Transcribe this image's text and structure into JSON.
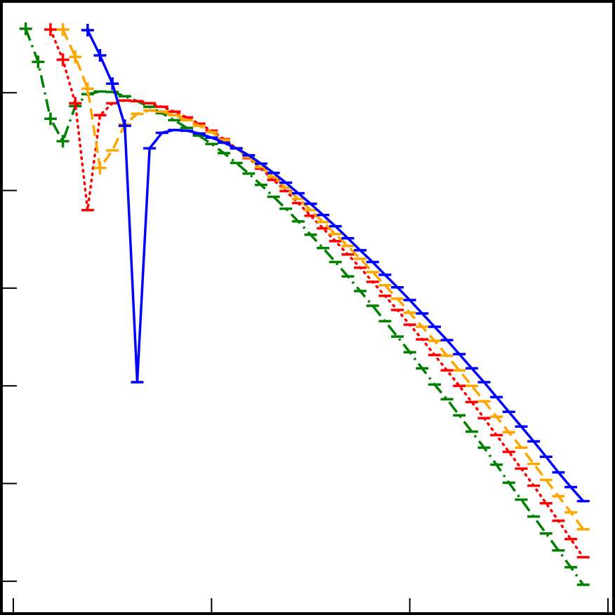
{
  "chart_data": {
    "type": "line",
    "log_x": true,
    "log_y": true,
    "sign_markers": true,
    "xlim": [
      0.0885,
      105
    ],
    "ylim": [
      4.82e-06,
      8.33
    ],
    "xticks": [
      0.1,
      1,
      10,
      100
    ],
    "yticks": [
      1e-05,
      0.0001,
      0.001,
      0.01,
      0.1,
      1
    ],
    "x": [
      0.1155,
      0.1334,
      0.154,
      0.1778,
      0.2054,
      0.2371,
      0.2738,
      0.3162,
      0.3652,
      0.4217,
      0.487,
      0.5623,
      0.6494,
      0.7499,
      0.866,
      1,
      1.155,
      1.334,
      1.54,
      1.778,
      2.054,
      2.371,
      2.738,
      3.162,
      3.652,
      4.217,
      4.87,
      5.623,
      6.494,
      7.499,
      8.66,
      10,
      11.55,
      13.34,
      15.4,
      17.78,
      20.54,
      23.71,
      27.38,
      31.62,
      36.52,
      42.17,
      48.7,
      56.23,
      64.94,
      74.99
    ],
    "series": [
      {
        "color": "#0000ff",
        "line_style": "solid",
        "values": [
          null,
          null,
          null,
          null,
          null,
          4.37,
          2.41,
          1.24,
          0.459,
          -0.00109,
          -0.27,
          -0.389,
          -0.416,
          -0.409,
          -0.383,
          -0.347,
          -0.308,
          -0.27,
          -0.229,
          -0.188,
          -0.151,
          -0.12,
          -0.0936,
          -0.073,
          -0.056,
          -0.043,
          -0.0324,
          -0.0244,
          -0.0185,
          -0.0137,
          -0.0102,
          -0.00755,
          -0.00551,
          -0.00402,
          -0.00294,
          -0.00211,
          -0.00151,
          -0.00109,
          -0.000767,
          -0.000542,
          -0.000383,
          -0.00027,
          -0.000188,
          -0.00013,
          -9.2e-05,
          -6.61e-05
        ]
      },
      {
        "color": "#ffa500",
        "line_style": "dashed",
        "values": [
          null,
          null,
          null,
          4.44,
          2.33,
          1.1,
          0.17,
          -0.257,
          -0.474,
          -0.608,
          -0.661,
          -0.64,
          -0.589,
          -0.524,
          -0.459,
          -0.395,
          -0.33,
          -0.27,
          -0.218,
          -0.173,
          -0.137,
          -0.107,
          -0.082,
          -0.0629,
          -0.0475,
          -0.0358,
          -0.027,
          -0.02,
          -0.0146,
          -0.0107,
          -0.0078,
          -0.0056,
          -0.00402,
          -0.00289,
          -0.00204,
          -0.00144,
          -0.001,
          -0.000695,
          -0.000483,
          -0.000335,
          -0.000233,
          -0.000159,
          -0.000109,
          -7.43e-05,
          -5.07e-05,
          -3.4e-05
        ]
      },
      {
        "color": "#ff0000",
        "line_style": "dotted",
        "values": [
          null,
          null,
          4.44,
          2.18,
          0.78,
          -0.0629,
          -0.589,
          -0.78,
          -0.834,
          -0.82,
          -0.78,
          -0.718,
          -0.64,
          -0.56,
          -0.482,
          -0.409,
          -0.335,
          -0.27,
          -0.214,
          -0.167,
          -0.128,
          -0.0984,
          -0.0743,
          -0.0551,
          -0.0409,
          -0.0303,
          -0.0221,
          -0.0162,
          -0.0116,
          -0.00834,
          -0.00598,
          -0.00423,
          -0.00299,
          -0.00207,
          -0.00144,
          -0.001,
          -0.000684,
          -0.000467,
          -0.000313,
          -0.000211,
          -0.000142,
          -9.51e-05,
          -6.29e-05,
          -4.16e-05,
          -2.7e-05,
          -1.76e-05
        ]
      },
      {
        "color": "#008000",
        "line_style": "dashdot",
        "values": [
          4.52,
          2.07,
          0.542,
          0.319,
          -0.73,
          -0.967,
          -1.03,
          -1.02,
          -0.921,
          -0.82,
          -0.718,
          -0.618,
          -0.524,
          -0.437,
          -0.364,
          -0.299,
          -0.241,
          -0.191,
          -0.149,
          -0.114,
          -0.0861,
          -0.065,
          -0.0482,
          -0.0352,
          -0.0257,
          -0.0185,
          -0.0132,
          -0.00935,
          -0.00661,
          -0.00459,
          -0.00319,
          -0.00221,
          -0.00151,
          -0.00103,
          -0.00073,
          -0.000499,
          -0.00034,
          -0.000233,
          -0.000156,
          -0.000102,
          -6.84e-05,
          -4.59e-05,
          -3.08e-05,
          -2.07e-05,
          -1.39e-05,
          -9.2e-06
        ]
      }
    ]
  }
}
